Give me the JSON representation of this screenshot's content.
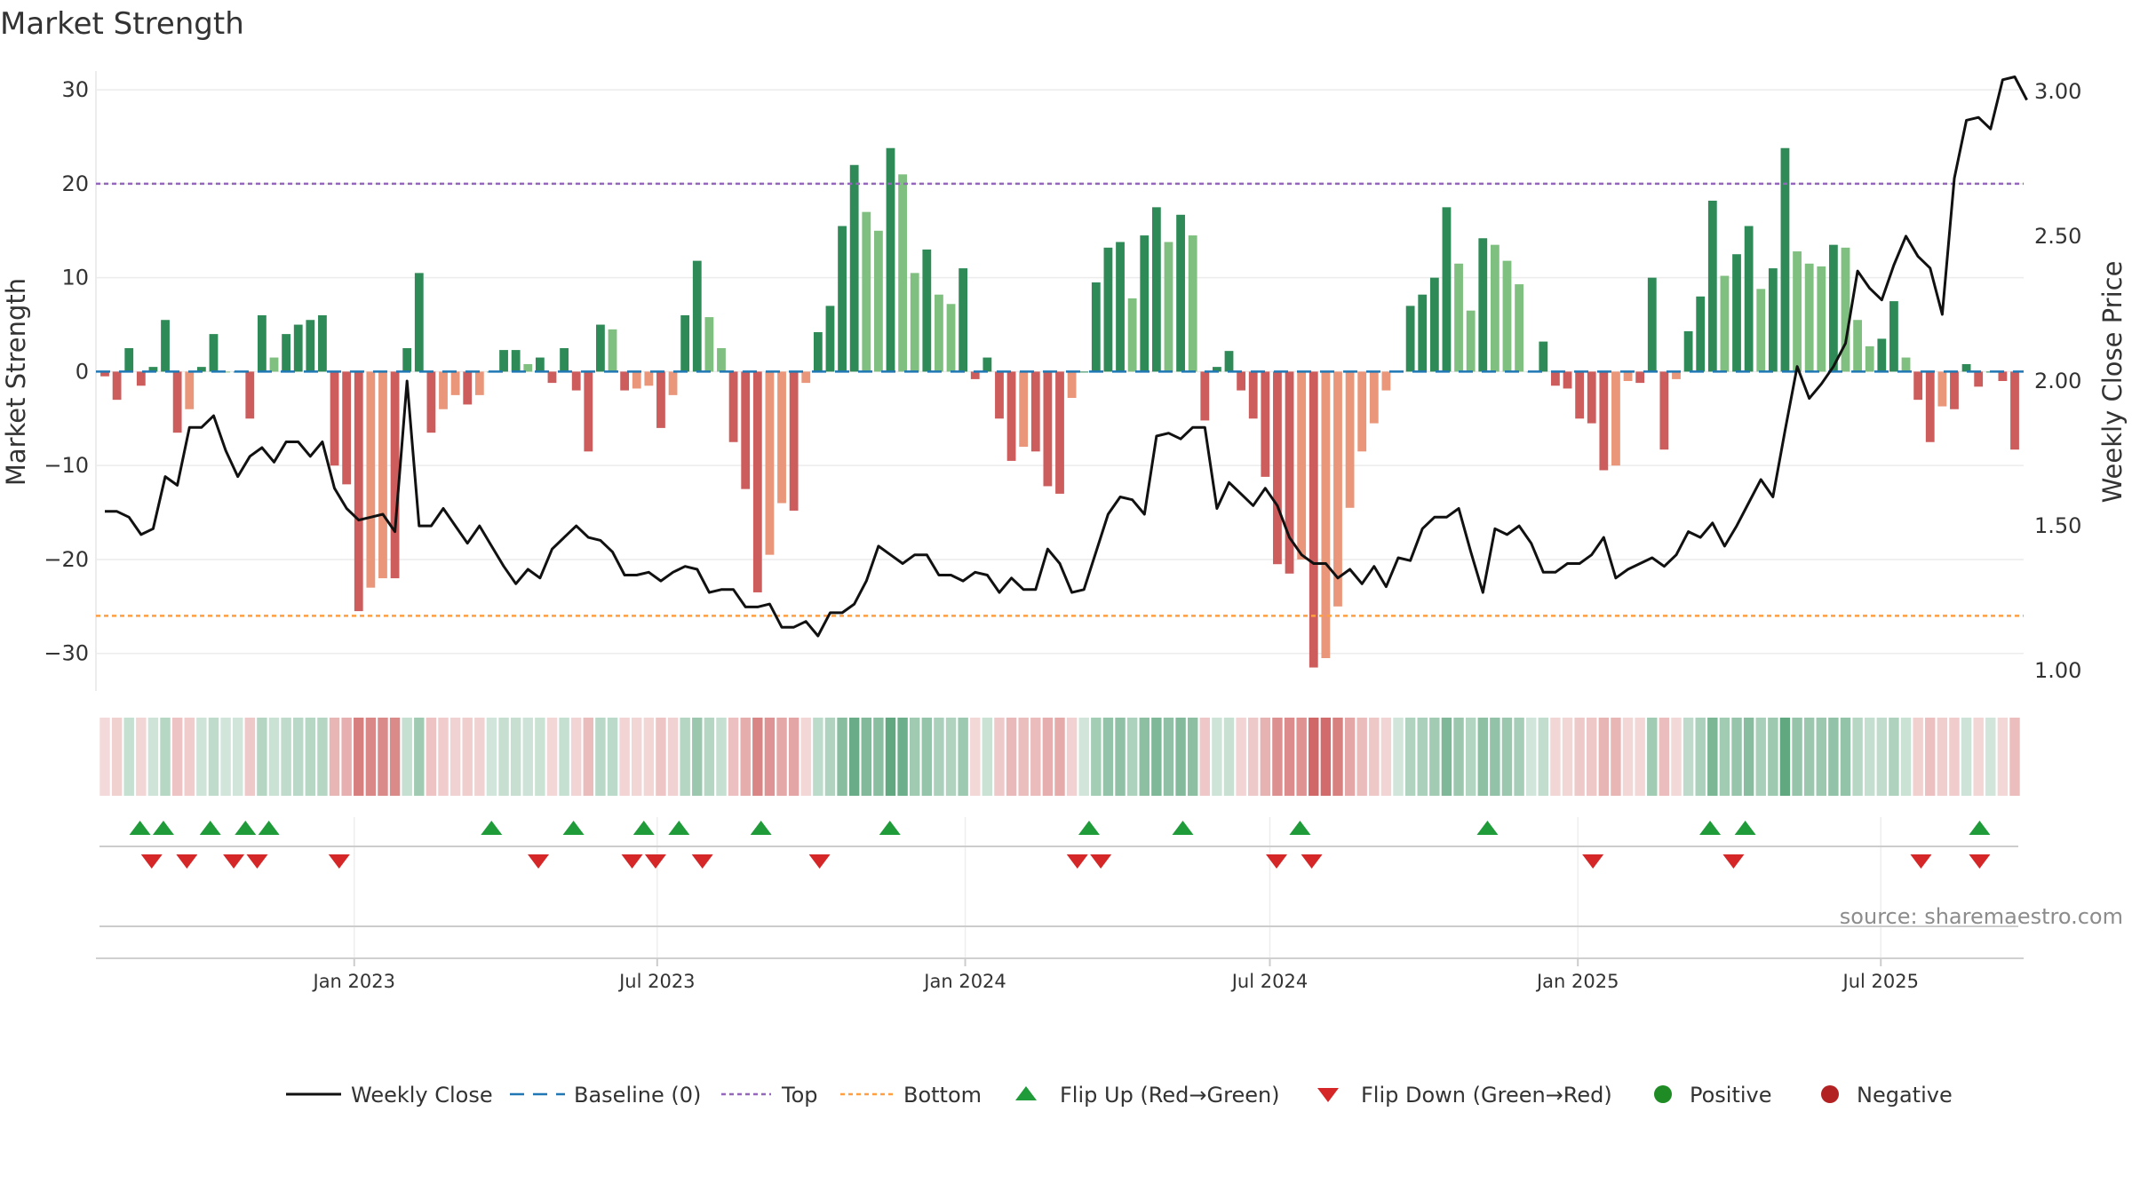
{
  "chart_data": {
    "type": "bar",
    "title": "Market Strength",
    "source": "source: sharemaestro.com",
    "ylabel_left": "Market Strength",
    "ylabel_right": "Weekly Close Price",
    "ylim_left": [
      -34,
      32
    ],
    "ylim_right": [
      0.93,
      3.07
    ],
    "yticks_left": [
      {
        "v": 30,
        "label": "30"
      },
      {
        "v": 20,
        "label": "20"
      },
      {
        "v": 10,
        "label": "10"
      },
      {
        "v": 0,
        "label": "0"
      },
      {
        "v": -10,
        "label": "−10"
      },
      {
        "v": -20,
        "label": "−20"
      },
      {
        "v": -30,
        "label": "−30"
      }
    ],
    "yticks_right": [
      {
        "v": 3.0,
        "label": "3.00"
      },
      {
        "v": 2.5,
        "label": "2.50"
      },
      {
        "v": 2.0,
        "label": "2.00"
      },
      {
        "v": 1.5,
        "label": "1.50"
      },
      {
        "v": 1.0,
        "label": "1.00"
      }
    ],
    "top_level": 20,
    "bottom_level": -26,
    "date_range": [
      "2022-08-05",
      "2025-09-19"
    ],
    "x_ticks": [
      {
        "date": "2023-01-01",
        "label": "Jan 2023"
      },
      {
        "date": "2023-07-01",
        "label": "Jul 2023"
      },
      {
        "date": "2024-01-01",
        "label": "Jan 2024"
      },
      {
        "date": "2024-07-01",
        "label": "Jul 2024"
      },
      {
        "date": "2025-01-01",
        "label": "Jan 2025"
      },
      {
        "date": "2025-07-01",
        "label": "Jul 2025"
      }
    ],
    "strength": [
      -0.5,
      -3,
      2.5,
      -1.5,
      0.5,
      5.5,
      -6.5,
      -4,
      0.5,
      4,
      0,
      0,
      -5,
      6,
      1.5,
      4,
      5,
      5.5,
      6,
      -10,
      -12,
      -25.5,
      -23,
      -22,
      -22,
      2.5,
      10.5,
      -6.5,
      -4,
      -2.5,
      -3.5,
      -2.5,
      0,
      2.3,
      2.3,
      0.8,
      1.5,
      -1.2,
      2.5,
      -2,
      -8.5,
      5,
      4.5,
      -2,
      -1.8,
      -1.5,
      -6,
      -2.5,
      6,
      11.8,
      5.8,
      2.5,
      -7.5,
      -12.5,
      -23.5,
      -19.5,
      -14,
      -14.8,
      -1.2,
      4.2,
      7,
      15.5,
      22,
      17,
      15,
      23.8,
      21,
      10.5,
      13,
      8.2,
      7.2,
      11,
      -0.8,
      1.5,
      -5,
      -9.5,
      -8,
      -8.5,
      -12.2,
      -13,
      -2.8,
      0,
      9.5,
      13.2,
      13.8,
      7.8,
      14.5,
      17.5,
      13.8,
      16.7,
      14.5,
      -5.2,
      0.5,
      2.2,
      -2,
      -5,
      -11.2,
      -20.5,
      -21.5,
      -20,
      -31.5,
      -30.5,
      -25,
      -14.5,
      -8.5,
      -5.5,
      -2,
      0,
      7,
      8.2,
      10,
      17.5,
      11.5,
      6.5,
      14.2,
      13.5,
      11.8,
      9.3,
      0,
      3.2,
      -1.5,
      -1.8,
      -5,
      -5.5,
      -10.5,
      -10,
      -1,
      -1.2,
      10,
      -8.3,
      -0.8,
      4.3,
      8,
      18.2,
      10.2,
      12.5,
      15.5,
      8.8,
      11,
      23.8,
      12.8,
      11.5,
      11.2,
      13.5,
      13.2,
      5.5,
      2.7,
      3.5,
      7.5,
      1.5,
      -3,
      -7.5,
      -3.7,
      -4,
      0.8,
      -1.6,
      0,
      -1,
      -8.3
    ],
    "price": [
      1.55,
      1.55,
      1.53,
      1.47,
      1.49,
      1.67,
      1.64,
      1.84,
      1.84,
      1.88,
      1.76,
      1.67,
      1.74,
      1.77,
      1.72,
      1.79,
      1.79,
      1.74,
      1.79,
      1.63,
      1.56,
      1.52,
      1.53,
      1.54,
      1.48,
      2.0,
      1.5,
      1.5,
      1.56,
      1.5,
      1.44,
      1.5,
      1.43,
      1.36,
      1.3,
      1.35,
      1.32,
      1.42,
      1.46,
      1.5,
      1.46,
      1.45,
      1.41,
      1.33,
      1.33,
      1.34,
      1.31,
      1.34,
      1.36,
      1.35,
      1.27,
      1.28,
      1.28,
      1.22,
      1.22,
      1.23,
      1.15,
      1.15,
      1.17,
      1.12,
      1.2,
      1.2,
      1.23,
      1.31,
      1.43,
      1.4,
      1.37,
      1.4,
      1.4,
      1.33,
      1.33,
      1.31,
      1.34,
      1.33,
      1.27,
      1.32,
      1.28,
      1.28,
      1.42,
      1.37,
      1.27,
      1.28,
      1.41,
      1.54,
      1.6,
      1.59,
      1.54,
      1.81,
      1.82,
      1.8,
      1.84,
      1.84,
      1.56,
      1.65,
      1.61,
      1.57,
      1.63,
      1.57,
      1.46,
      1.4,
      1.37,
      1.37,
      1.32,
      1.35,
      1.3,
      1.36,
      1.29,
      1.39,
      1.38,
      1.49,
      1.53,
      1.53,
      1.56,
      1.41,
      1.27,
      1.49,
      1.47,
      1.5,
      1.44,
      1.34,
      1.34,
      1.37,
      1.37,
      1.4,
      1.46,
      1.32,
      1.35,
      1.37,
      1.39,
      1.36,
      1.4,
      1.48,
      1.46,
      1.51,
      1.43,
      1.5,
      1.58,
      1.66,
      1.6,
      1.83,
      2.05,
      1.94,
      1.99,
      2.05,
      2.13,
      2.38,
      2.32,
      2.28,
      2.4,
      2.5,
      2.43,
      2.39,
      2.23,
      2.7,
      2.9,
      2.91,
      2.87,
      3.04,
      3.05,
      2.97
    ],
    "flip_up": [
      "2022-08-26",
      "2022-09-09",
      "2022-10-07",
      "2022-10-28",
      "2022-11-11",
      "2023-03-24",
      "2023-05-12",
      "2023-06-23",
      "2023-07-14",
      "2023-09-01",
      "2023-11-17",
      "2024-03-15",
      "2024-05-10",
      "2024-07-19",
      "2024-11-08",
      "2025-03-21",
      "2025-04-11",
      "2025-08-29"
    ],
    "flip_down": [
      "2022-09-02",
      "2022-09-23",
      "2022-10-21",
      "2022-11-04",
      "2022-12-23",
      "2023-04-21",
      "2023-06-16",
      "2023-06-30",
      "2023-07-28",
      "2023-10-06",
      "2024-03-08",
      "2024-03-22",
      "2024-07-05",
      "2024-07-26",
      "2025-01-10",
      "2025-04-04",
      "2025-07-25",
      "2025-08-29"
    ],
    "colors": {
      "strong_green": "#2e8b57",
      "light_green": "#7fbf7f",
      "strong_red": "#cd5c5c",
      "light_red": "#e9967a",
      "price_line": "#111111",
      "baseline": "#1f77b4",
      "top": "#9467bd",
      "bottom": "#ff9f43",
      "flip_up": "#1f9b3a",
      "flip_down": "#d62728",
      "positive": "#1f8b24",
      "negative": "#b22222"
    },
    "legend": [
      {
        "key": "weekly_close",
        "label": "Weekly Close"
      },
      {
        "key": "baseline",
        "label": "Baseline (0)"
      },
      {
        "key": "top",
        "label": "Top"
      },
      {
        "key": "bottom",
        "label": "Bottom"
      },
      {
        "key": "flip_up",
        "label": "Flip Up (Red→Green)"
      },
      {
        "key": "flip_down",
        "label": "Flip Down (Green→Red)"
      },
      {
        "key": "positive",
        "label": "Positive"
      },
      {
        "key": "negative",
        "label": "Negative"
      }
    ]
  }
}
